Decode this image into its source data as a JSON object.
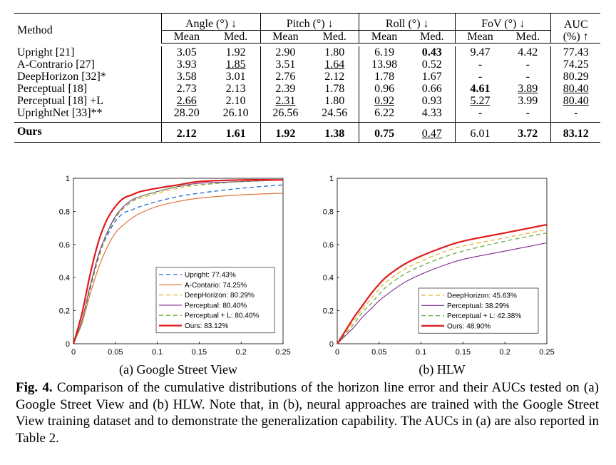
{
  "table": {
    "headers": {
      "method": "Method",
      "angle": "Angle (°) ↓",
      "pitch": "Pitch (°) ↓",
      "roll": "Roll (°) ↓",
      "fov": "FoV (°) ↓",
      "auc_line1": "AUC",
      "auc_line2": "(%) ↑",
      "mean": "Mean",
      "med": "Med."
    },
    "rows": [
      {
        "method": "Upright [21]",
        "values": [
          "3.05",
          "1.92",
          "2.90",
          "1.80",
          "6.19",
          "0.43",
          "9.47",
          "4.42",
          "77.43"
        ]
      },
      {
        "method": "A-Contrario [27]",
        "values": [
          "3.93",
          "1.85",
          "3.51",
          "1.64",
          "13.98",
          "0.52",
          "-",
          "-",
          "74.25"
        ]
      },
      {
        "method": "DeepHorizon [32]*",
        "values": [
          "3.58",
          "3.01",
          "2.76",
          "2.12",
          "1.78",
          "1.67",
          "-",
          "-",
          "80.29"
        ]
      },
      {
        "method": "Perceptual [18]",
        "values": [
          "2.73",
          "2.13",
          "2.39",
          "1.78",
          "0.96",
          "0.66",
          "4.61",
          "3.89",
          "80.40"
        ]
      },
      {
        "method": "Perceptual [18] +L",
        "values": [
          "2.66",
          "2.10",
          "2.31",
          "1.80",
          "0.92",
          "0.93",
          "5.27",
          "3.99",
          "80.40"
        ]
      },
      {
        "method": "UprightNet [33]**",
        "values": [
          "28.20",
          "26.10",
          "26.56",
          "24.56",
          "6.22",
          "4.33",
          "-",
          "-",
          "-"
        ]
      }
    ],
    "ours": {
      "method": "Ours",
      "values": [
        "2.12",
        "1.61",
        "1.92",
        "1.38",
        "0.75",
        "0.47",
        "6.01",
        "3.72",
        "83.12"
      ]
    }
  },
  "colors": {
    "upright": "#1f6fd1",
    "acontrario": "#e06a2a",
    "deephorizon": "#e3b33a",
    "perceptual": "#7a2c8f",
    "perceptual_l": "#6cae3f",
    "ours": "#e01a1a"
  },
  "chart_a": {
    "subtitle": "(a) Google Street View",
    "xticks": [
      "0",
      "0.05",
      "0.1",
      "0.15",
      "0.2",
      "0.25"
    ],
    "yticks": [
      "0",
      "0.2",
      "0.4",
      "0.6",
      "0.8",
      "1"
    ],
    "legend": [
      "Upright: 77.43%",
      "A-Contario: 74.25%",
      "DeepHorizon: 80.29%",
      "Perceptual: 80.40%",
      "Perceptual + L: 80.40%",
      "Ours: 83.12%"
    ]
  },
  "chart_b": {
    "subtitle": "(b) HLW",
    "xticks": [
      "0",
      "0.05",
      "0.1",
      "0.15",
      "0.2",
      "0.25"
    ],
    "yticks": [
      "0",
      "0.2",
      "0.4",
      "0.6",
      "0.8",
      "1"
    ],
    "legend": [
      "DeepHorizon: 45.63%",
      "Perceptual: 38.29%",
      "Perceptual + L: 42.38%",
      "Ours: 48.90%"
    ]
  },
  "chart_data": [
    {
      "type": "line",
      "title": "(a) Google Street View",
      "xlim": [
        0,
        0.25
      ],
      "ylim": [
        0,
        1
      ],
      "x": [
        0,
        0.01,
        0.02,
        0.03,
        0.04,
        0.05,
        0.06,
        0.07,
        0.08,
        0.1,
        0.125,
        0.15,
        0.2,
        0.25
      ],
      "series": [
        {
          "name": "Upright: 77.43%",
          "values": [
            0,
            0.13,
            0.34,
            0.53,
            0.65,
            0.74,
            0.79,
            0.81,
            0.83,
            0.86,
            0.89,
            0.91,
            0.94,
            0.96
          ]
        },
        {
          "name": "A-Contario: 74.25%",
          "values": [
            0,
            0.12,
            0.3,
            0.46,
            0.58,
            0.67,
            0.72,
            0.76,
            0.79,
            0.83,
            0.86,
            0.88,
            0.9,
            0.91
          ]
        },
        {
          "name": "DeepHorizon: 80.29%",
          "values": [
            0,
            0.13,
            0.33,
            0.52,
            0.66,
            0.76,
            0.82,
            0.86,
            0.88,
            0.91,
            0.94,
            0.96,
            0.98,
            0.99
          ]
        },
        {
          "name": "Perceptual: 80.40%",
          "values": [
            0,
            0.14,
            0.35,
            0.54,
            0.67,
            0.77,
            0.83,
            0.87,
            0.89,
            0.92,
            0.95,
            0.97,
            0.98,
            0.99
          ]
        },
        {
          "name": "Perceptual + L: 80.40%",
          "values": [
            0,
            0.13,
            0.33,
            0.52,
            0.66,
            0.76,
            0.82,
            0.86,
            0.89,
            0.92,
            0.95,
            0.96,
            0.98,
            0.99
          ]
        },
        {
          "name": "Ours: 83.12%",
          "values": [
            0,
            0.18,
            0.42,
            0.62,
            0.75,
            0.83,
            0.88,
            0.9,
            0.92,
            0.94,
            0.96,
            0.98,
            0.99,
            0.99
          ]
        }
      ]
    },
    {
      "type": "line",
      "title": "(b) HLW",
      "xlim": [
        0,
        0.25
      ],
      "ylim": [
        0,
        1
      ],
      "x": [
        0,
        0.01,
        0.02,
        0.03,
        0.04,
        0.05,
        0.06,
        0.08,
        0.1,
        0.125,
        0.15,
        0.2,
        0.25
      ],
      "series": [
        {
          "name": "DeepHorizon: 45.63%",
          "values": [
            0,
            0.07,
            0.14,
            0.21,
            0.27,
            0.33,
            0.38,
            0.45,
            0.5,
            0.55,
            0.59,
            0.64,
            0.69
          ]
        },
        {
          "name": "Perceptual: 38.29%",
          "values": [
            0,
            0.05,
            0.1,
            0.16,
            0.21,
            0.26,
            0.3,
            0.37,
            0.42,
            0.47,
            0.51,
            0.56,
            0.61
          ]
        },
        {
          "name": "Perceptual + L: 42.38%",
          "values": [
            0,
            0.06,
            0.12,
            0.19,
            0.24,
            0.3,
            0.35,
            0.42,
            0.47,
            0.52,
            0.56,
            0.62,
            0.67
          ]
        },
        {
          "name": "Ours: 48.90%",
          "values": [
            0,
            0.08,
            0.16,
            0.23,
            0.3,
            0.36,
            0.41,
            0.48,
            0.53,
            0.58,
            0.62,
            0.67,
            0.72
          ]
        }
      ]
    }
  ],
  "caption": {
    "label": "Fig. 4.",
    "text": " Comparison of the cumulative distributions of the horizon line error and their AUCs tested on (a) Google Street View and (b) HLW. Note that, in (b), neural approaches are trained with the Google Street View training dataset and to demonstrate the generalization capability. The AUCs in (a) are also reported in Table 2."
  }
}
